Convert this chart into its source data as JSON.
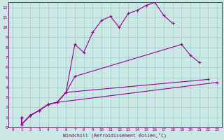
{
  "xlabel": "Windchill (Refroidissement éolien,°C)",
  "bg_color": "#cce8e4",
  "line_color": "#990099",
  "grid_color": "#99cccc",
  "line1_x": [
    1,
    1,
    2,
    3,
    4,
    5,
    6,
    7,
    8,
    9,
    10,
    11,
    12,
    13,
    14,
    15,
    16,
    17,
    18
  ],
  "line1_y": [
    1,
    0.3,
    1.2,
    1.7,
    2.3,
    2.5,
    3.5,
    8.3,
    7.5,
    9.5,
    10.7,
    11.1,
    10.0,
    11.4,
    11.7,
    12.2,
    12.5,
    11.2,
    10.4
  ],
  "line2_x": [
    1,
    1,
    2,
    3,
    4,
    5,
    6,
    7,
    19,
    20,
    21
  ],
  "line2_y": [
    1,
    0.3,
    1.2,
    1.7,
    2.3,
    2.5,
    3.5,
    5.1,
    8.3,
    7.2,
    6.5
  ],
  "line3_x": [
    1,
    1,
    2,
    3,
    4,
    5,
    6,
    22
  ],
  "line3_y": [
    1,
    0.3,
    1.2,
    1.7,
    2.3,
    2.5,
    3.5,
    4.8
  ],
  "line4_x": [
    1,
    1,
    2,
    3,
    4,
    5,
    23
  ],
  "line4_y": [
    1,
    0.3,
    1.2,
    1.7,
    2.3,
    2.5,
    4.5
  ],
  "xlim": [
    -0.5,
    23.5
  ],
  "ylim": [
    0,
    12.5
  ],
  "yticks": [
    0,
    1,
    2,
    3,
    4,
    5,
    6,
    7,
    8,
    9,
    10,
    11,
    12
  ],
  "xticks": [
    0,
    1,
    2,
    3,
    4,
    5,
    6,
    7,
    8,
    9,
    10,
    11,
    12,
    13,
    14,
    15,
    16,
    17,
    18,
    19,
    20,
    21,
    22,
    23
  ]
}
